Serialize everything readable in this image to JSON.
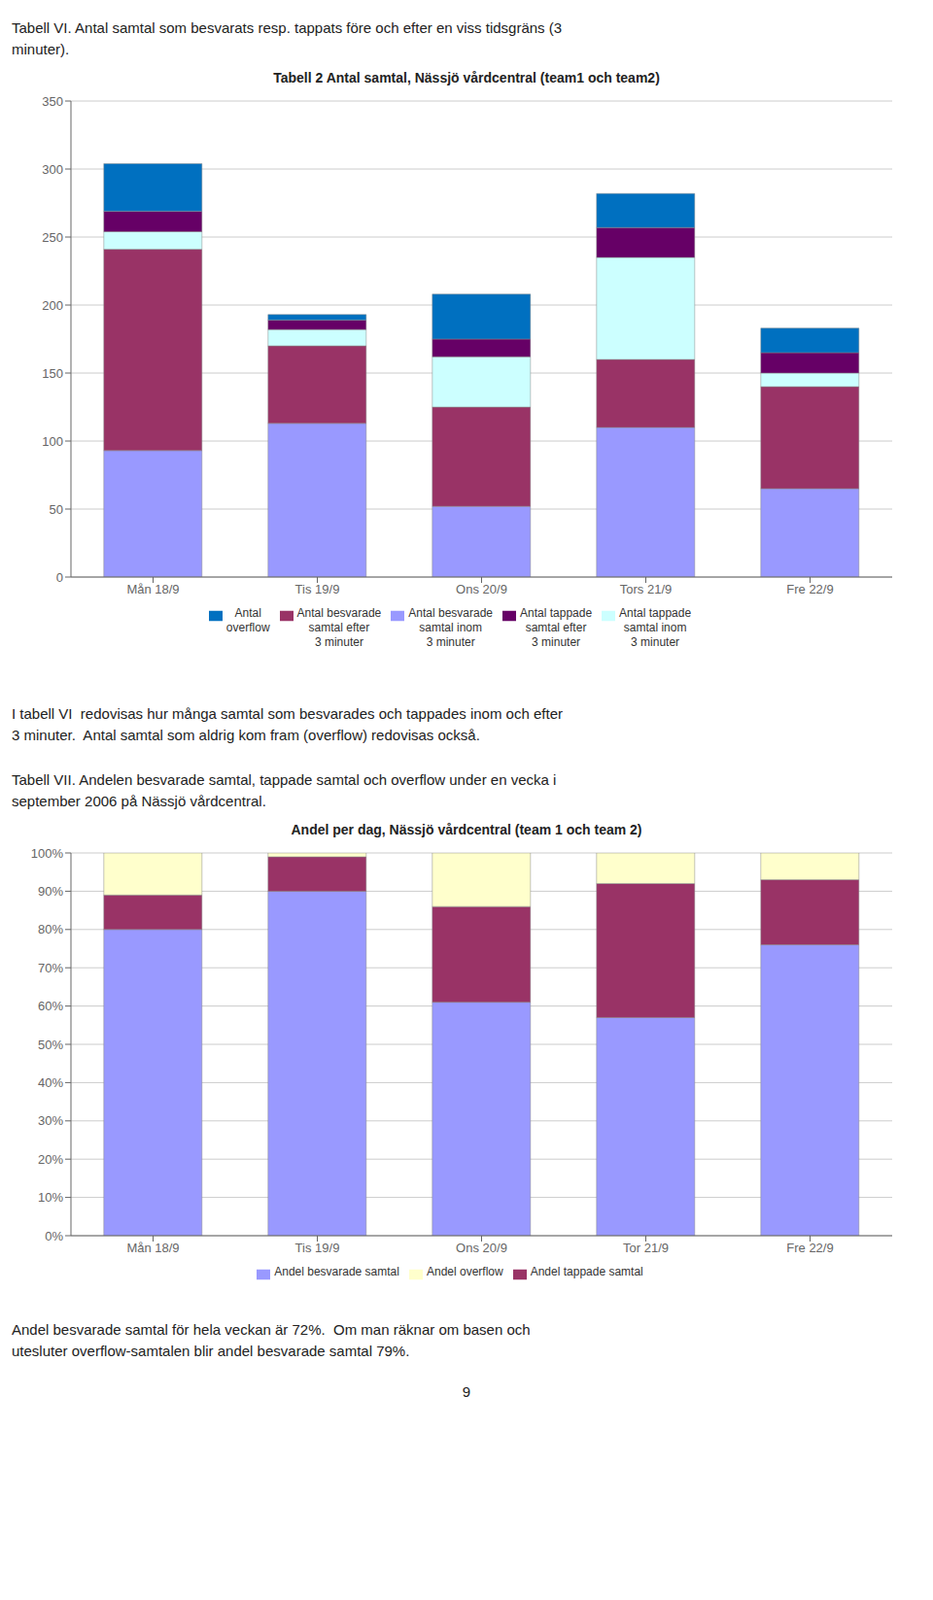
{
  "chart_data": [
    {
      "type": "bar",
      "stacked": true,
      "grid": true,
      "legend": "bottom",
      "title": "Tabell 2 Antal samtal, Nässjö vårdcentral (team1 och team2)",
      "annotations": [
        "Tabell VI. Antal samtal som besvarats resp. tappats före och efter en viss tidsgräns (3\nminuter).",
        "I tabell VI  redovisas hur många samtal som besvarades och tappades inom och efter\n3 minuter.  Antal samtal som aldrig kom fram (overflow) redovisas också."
      ],
      "categories": [
        "Mån 18/9",
        "Tis 19/9",
        "Ons 20/9",
        "Tors 21/9",
        "Fre 22/9"
      ],
      "series": [
        {
          "name": "Antal besvarade\nsamtal inom\n3 minuter",
          "color": "#9999FF",
          "values": [
            93,
            113,
            52,
            110,
            65
          ]
        },
        {
          "name": "Antal besvarade\nsamtal efter\n3 minuter",
          "color": "#993366",
          "values": [
            148,
            57,
            73,
            50,
            75
          ]
        },
        {
          "name": "Antal tappade\nsamtal inom\n3 minuter",
          "color": "#CCFFFF",
          "values": [
            13,
            12,
            37,
            75,
            10
          ]
        },
        {
          "name": "Antal tappade\nsamtal efter\n3 minuter",
          "color": "#660066",
          "values": [
            15,
            7,
            13,
            22,
            15
          ]
        },
        {
          "name": "Antal\noverflow",
          "color": "#0070C0",
          "values": [
            35,
            4,
            33,
            25,
            18
          ]
        }
      ],
      "ylim": [
        0,
        350
      ],
      "yticks": [
        0,
        50,
        100,
        150,
        200,
        250,
        300,
        350
      ]
    },
    {
      "type": "bar",
      "stacked": true,
      "grid": true,
      "legend": "bottom",
      "title": "Andel per dag, Nässjö vårdcentral (team 1 och team 2)",
      "annotations": [
        "Tabell VII. Andelen besvarade samtal, tappade samtal och overflow under en vecka i\nseptember 2006 på Nässjö vårdcentral.",
        "Andel besvarade samtal för hela veckan är 72%.  Om man räknar om basen och\nutesluter overflow-samtalen blir andel besvarade samtal 79%.",
        "9"
      ],
      "categories": [
        "Mån 18/9",
        "Tis 19/9",
        "Ons 20/9",
        "Tor 21/9",
        "Fre 22/9"
      ],
      "series": [
        {
          "name": "Andel besvarade samtal",
          "color": "#9999FF",
          "values": [
            80,
            90,
            61,
            57,
            76
          ]
        },
        {
          "name": "Andel tappade samtal",
          "color": "#993366",
          "values": [
            9,
            9,
            25,
            35,
            17
          ]
        },
        {
          "name": "Andel overflow",
          "color": "#FFFFCC",
          "values": [
            11,
            1,
            14,
            8,
            7
          ]
        }
      ],
      "ylim": [
        0,
        100
      ],
      "yticks": [
        {
          "value": 0,
          "label": "0%"
        },
        {
          "value": 10,
          "label": "10%"
        },
        {
          "value": 20,
          "label": "20%"
        },
        {
          "value": 30,
          "label": "30%"
        },
        {
          "value": 40,
          "label": "40%"
        },
        {
          "value": 50,
          "label": "50%"
        },
        {
          "value": 60,
          "label": "60%"
        },
        {
          "value": 70,
          "label": "70%"
        },
        {
          "value": 80,
          "label": "80%"
        },
        {
          "value": 90,
          "label": "90%"
        },
        {
          "value": 100,
          "label": "100%"
        }
      ]
    }
  ]
}
